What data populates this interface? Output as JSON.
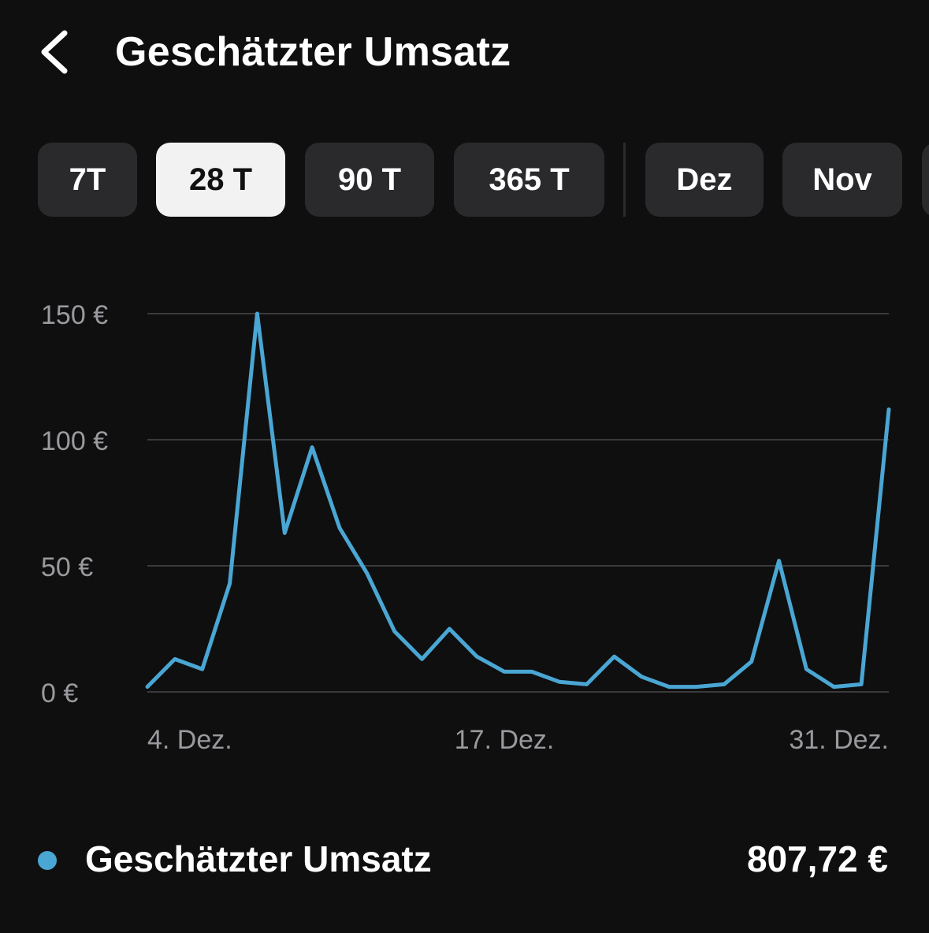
{
  "header": {
    "title": "Geschätzter Umsatz",
    "back_icon": "chevron-left-icon"
  },
  "filters": {
    "items": [
      {
        "label": "7T",
        "active": false
      },
      {
        "label": "28 T",
        "active": true
      },
      {
        "label": "90 T",
        "active": false
      },
      {
        "label": "365 T",
        "active": false
      },
      {
        "label": "Dez",
        "active": false
      },
      {
        "label": "Nov",
        "active": false
      }
    ]
  },
  "chart_data": {
    "type": "line",
    "x": [
      "4. Dez.",
      "5. Dez.",
      "6. Dez.",
      "7. Dez.",
      "8. Dez.",
      "9. Dez.",
      "10. Dez.",
      "11. Dez.",
      "12. Dez.",
      "13. Dez.",
      "14. Dez.",
      "15. Dez.",
      "16. Dez.",
      "17. Dez.",
      "18. Dez.",
      "19. Dez.",
      "20. Dez.",
      "21. Dez.",
      "22. Dez.",
      "23. Dez.",
      "24. Dez.",
      "25. Dez.",
      "26. Dez.",
      "27. Dez.",
      "28. Dez.",
      "29. Dez.",
      "30. Dez.",
      "31. Dez."
    ],
    "series": [
      {
        "values": [
          2,
          13,
          9,
          43,
          150,
          63,
          97,
          65,
          47,
          24,
          13,
          25,
          14,
          8,
          8,
          4,
          3,
          14,
          6,
          2,
          2,
          3,
          12,
          52,
          9,
          2,
          3,
          112
        ]
      }
    ],
    "x_tick_labels": [
      "4. Dez.",
      "17. Dez.",
      "31. Dez."
    ],
    "y_tick_labels": [
      "150 €",
      "100 €",
      "50 €",
      "0 €"
    ],
    "y_ticks": [
      150,
      100,
      50,
      0
    ],
    "ylim": [
      0,
      150
    ],
    "grid": true,
    "line_color": "#4aa6d3"
  },
  "legend": {
    "label": "Geschätzter Umsatz",
    "total": "807,72 €",
    "color": "#4aa6d3"
  }
}
